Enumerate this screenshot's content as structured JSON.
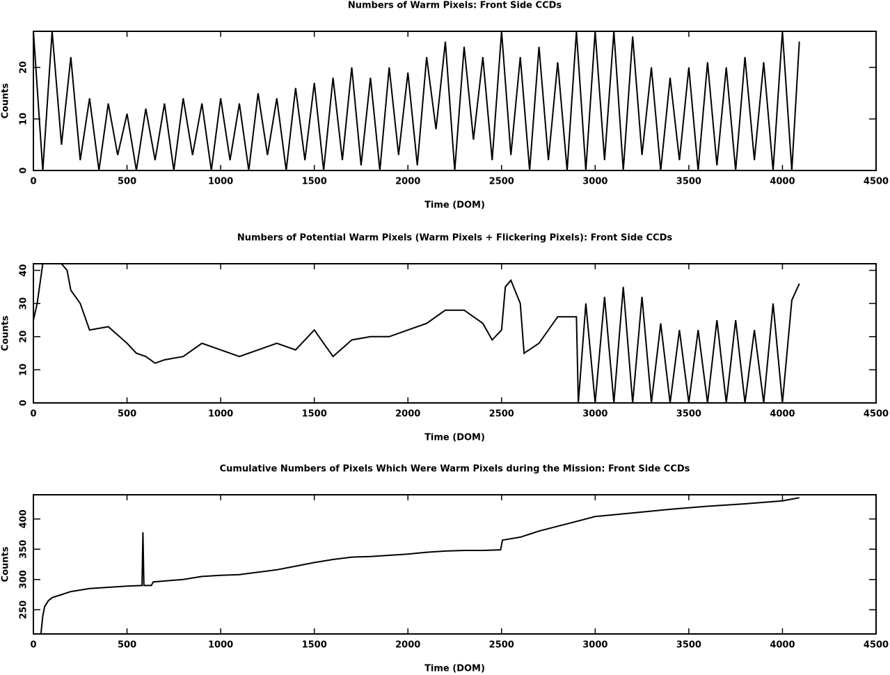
{
  "chart_data": [
    {
      "type": "line",
      "title": "Numbers of Warm Pixels: Front Side CCDs",
      "xlabel": "Time (DOM)",
      "ylabel": "Counts",
      "color": "#000000",
      "xlim": [
        0,
        4500
      ],
      "xticks": [
        0,
        500,
        1000,
        1500,
        2000,
        2500,
        3000,
        3500,
        4000,
        4500
      ],
      "ylim": [
        0,
        27
      ],
      "yticks": [
        0,
        10,
        20
      ],
      "x": [
        0,
        50,
        100,
        150,
        200,
        250,
        300,
        350,
        400,
        450,
        500,
        550,
        600,
        650,
        700,
        750,
        800,
        850,
        900,
        950,
        1000,
        1050,
        1100,
        1150,
        1200,
        1250,
        1300,
        1350,
        1400,
        1450,
        1500,
        1550,
        1600,
        1650,
        1700,
        1750,
        1800,
        1850,
        1900,
        1950,
        2000,
        2050,
        2100,
        2150,
        2200,
        2250,
        2300,
        2350,
        2400,
        2450,
        2500,
        2550,
        2600,
        2650,
        2700,
        2750,
        2800,
        2850,
        2900,
        2950,
        3000,
        3050,
        3100,
        3150,
        3200,
        3250,
        3300,
        3350,
        3400,
        3450,
        3500,
        3550,
        3600,
        3650,
        3700,
        3750,
        3800,
        3850,
        3900,
        3950,
        4000,
        4050,
        4090
      ],
      "values": [
        27,
        0,
        27,
        5,
        22,
        2,
        14,
        0,
        13,
        3,
        11,
        0,
        12,
        2,
        13,
        0,
        14,
        3,
        13,
        0,
        14,
        2,
        13,
        0,
        15,
        3,
        14,
        0,
        16,
        2,
        17,
        0,
        18,
        2,
        20,
        1,
        18,
        0,
        20,
        3,
        19,
        1,
        22,
        8,
        25,
        0,
        24,
        6,
        22,
        2,
        27,
        3,
        22,
        0,
        24,
        2,
        21,
        0,
        27,
        0,
        27,
        2,
        27,
        0,
        26,
        3,
        20,
        0,
        18,
        2,
        20,
        0,
        21,
        1,
        20,
        0,
        22,
        2,
        21,
        0,
        27,
        0,
        25
      ]
    },
    {
      "type": "line",
      "title": "Numbers of Potential Warm Pixels (Warm Pixels + Flickering Pixels): Front Side CCDs",
      "xlabel": "Time (DOM)",
      "ylabel": "Counts",
      "color": "#000000",
      "xlim": [
        0,
        4500
      ],
      "xticks": [
        0,
        500,
        1000,
        1500,
        2000,
        2500,
        3000,
        3500,
        4000,
        4500
      ],
      "ylim": [
        0,
        42
      ],
      "yticks": [
        0,
        10,
        20,
        30,
        40
      ],
      "x": [
        0,
        20,
        50,
        100,
        150,
        180,
        200,
        250,
        300,
        400,
        500,
        550,
        600,
        650,
        700,
        800,
        900,
        1000,
        1100,
        1200,
        1300,
        1400,
        1500,
        1550,
        1600,
        1700,
        1800,
        1900,
        2000,
        2100,
        2200,
        2300,
        2400,
        2450,
        2500,
        2520,
        2550,
        2600,
        2620,
        2700,
        2800,
        2900,
        2910,
        2950,
        3000,
        3050,
        3100,
        3150,
        3200,
        3250,
        3300,
        3350,
        3400,
        3450,
        3500,
        3550,
        3600,
        3650,
        3700,
        3750,
        3800,
        3850,
        3900,
        3950,
        4000,
        4050,
        4090
      ],
      "values": [
        25,
        30,
        42,
        42,
        42,
        40,
        34,
        30,
        22,
        23,
        18,
        15,
        14,
        12,
        13,
        14,
        18,
        16,
        14,
        16,
        18,
        16,
        22,
        18,
        14,
        19,
        20,
        20,
        22,
        24,
        28,
        28,
        24,
        19,
        22,
        35,
        37,
        30,
        15,
        18,
        26,
        26,
        0,
        30,
        0,
        32,
        0,
        35,
        0,
        32,
        0,
        24,
        0,
        22,
        0,
        22,
        0,
        25,
        0,
        25,
        0,
        22,
        0,
        30,
        0,
        31,
        36
      ]
    },
    {
      "type": "line",
      "title": "Cumulative Numbers of Pixels Which Were Warm Pixels during the Mission: Front Side CCDs",
      "xlabel": "Time (DOM)",
      "ylabel": "Counts",
      "color": "#000000",
      "xlim": [
        0,
        4500
      ],
      "xticks": [
        0,
        500,
        1000,
        1500,
        2000,
        2500,
        3000,
        3500,
        4000,
        4500
      ],
      "ylim": [
        210,
        440
      ],
      "yticks": [
        250,
        300,
        350,
        400
      ],
      "x": [
        40,
        50,
        60,
        80,
        100,
        150,
        200,
        300,
        400,
        500,
        580,
        585,
        590,
        630,
        640,
        800,
        900,
        1000,
        1100,
        1200,
        1300,
        1400,
        1500,
        1600,
        1700,
        1800,
        1900,
        2000,
        2100,
        2200,
        2300,
        2400,
        2495,
        2505,
        2600,
        2700,
        2800,
        2900,
        3000,
        3200,
        3400,
        3600,
        3800,
        4000,
        4090
      ],
      "values": [
        210,
        240,
        255,
        265,
        270,
        275,
        280,
        285,
        287,
        289,
        290,
        378,
        290,
        290,
        296,
        300,
        305,
        307,
        308,
        312,
        316,
        322,
        328,
        333,
        337,
        338,
        340,
        342,
        345,
        347,
        348,
        348,
        349,
        365,
        370,
        380,
        388,
        396,
        404,
        410,
        416,
        421,
        425,
        430,
        435
      ]
    }
  ]
}
